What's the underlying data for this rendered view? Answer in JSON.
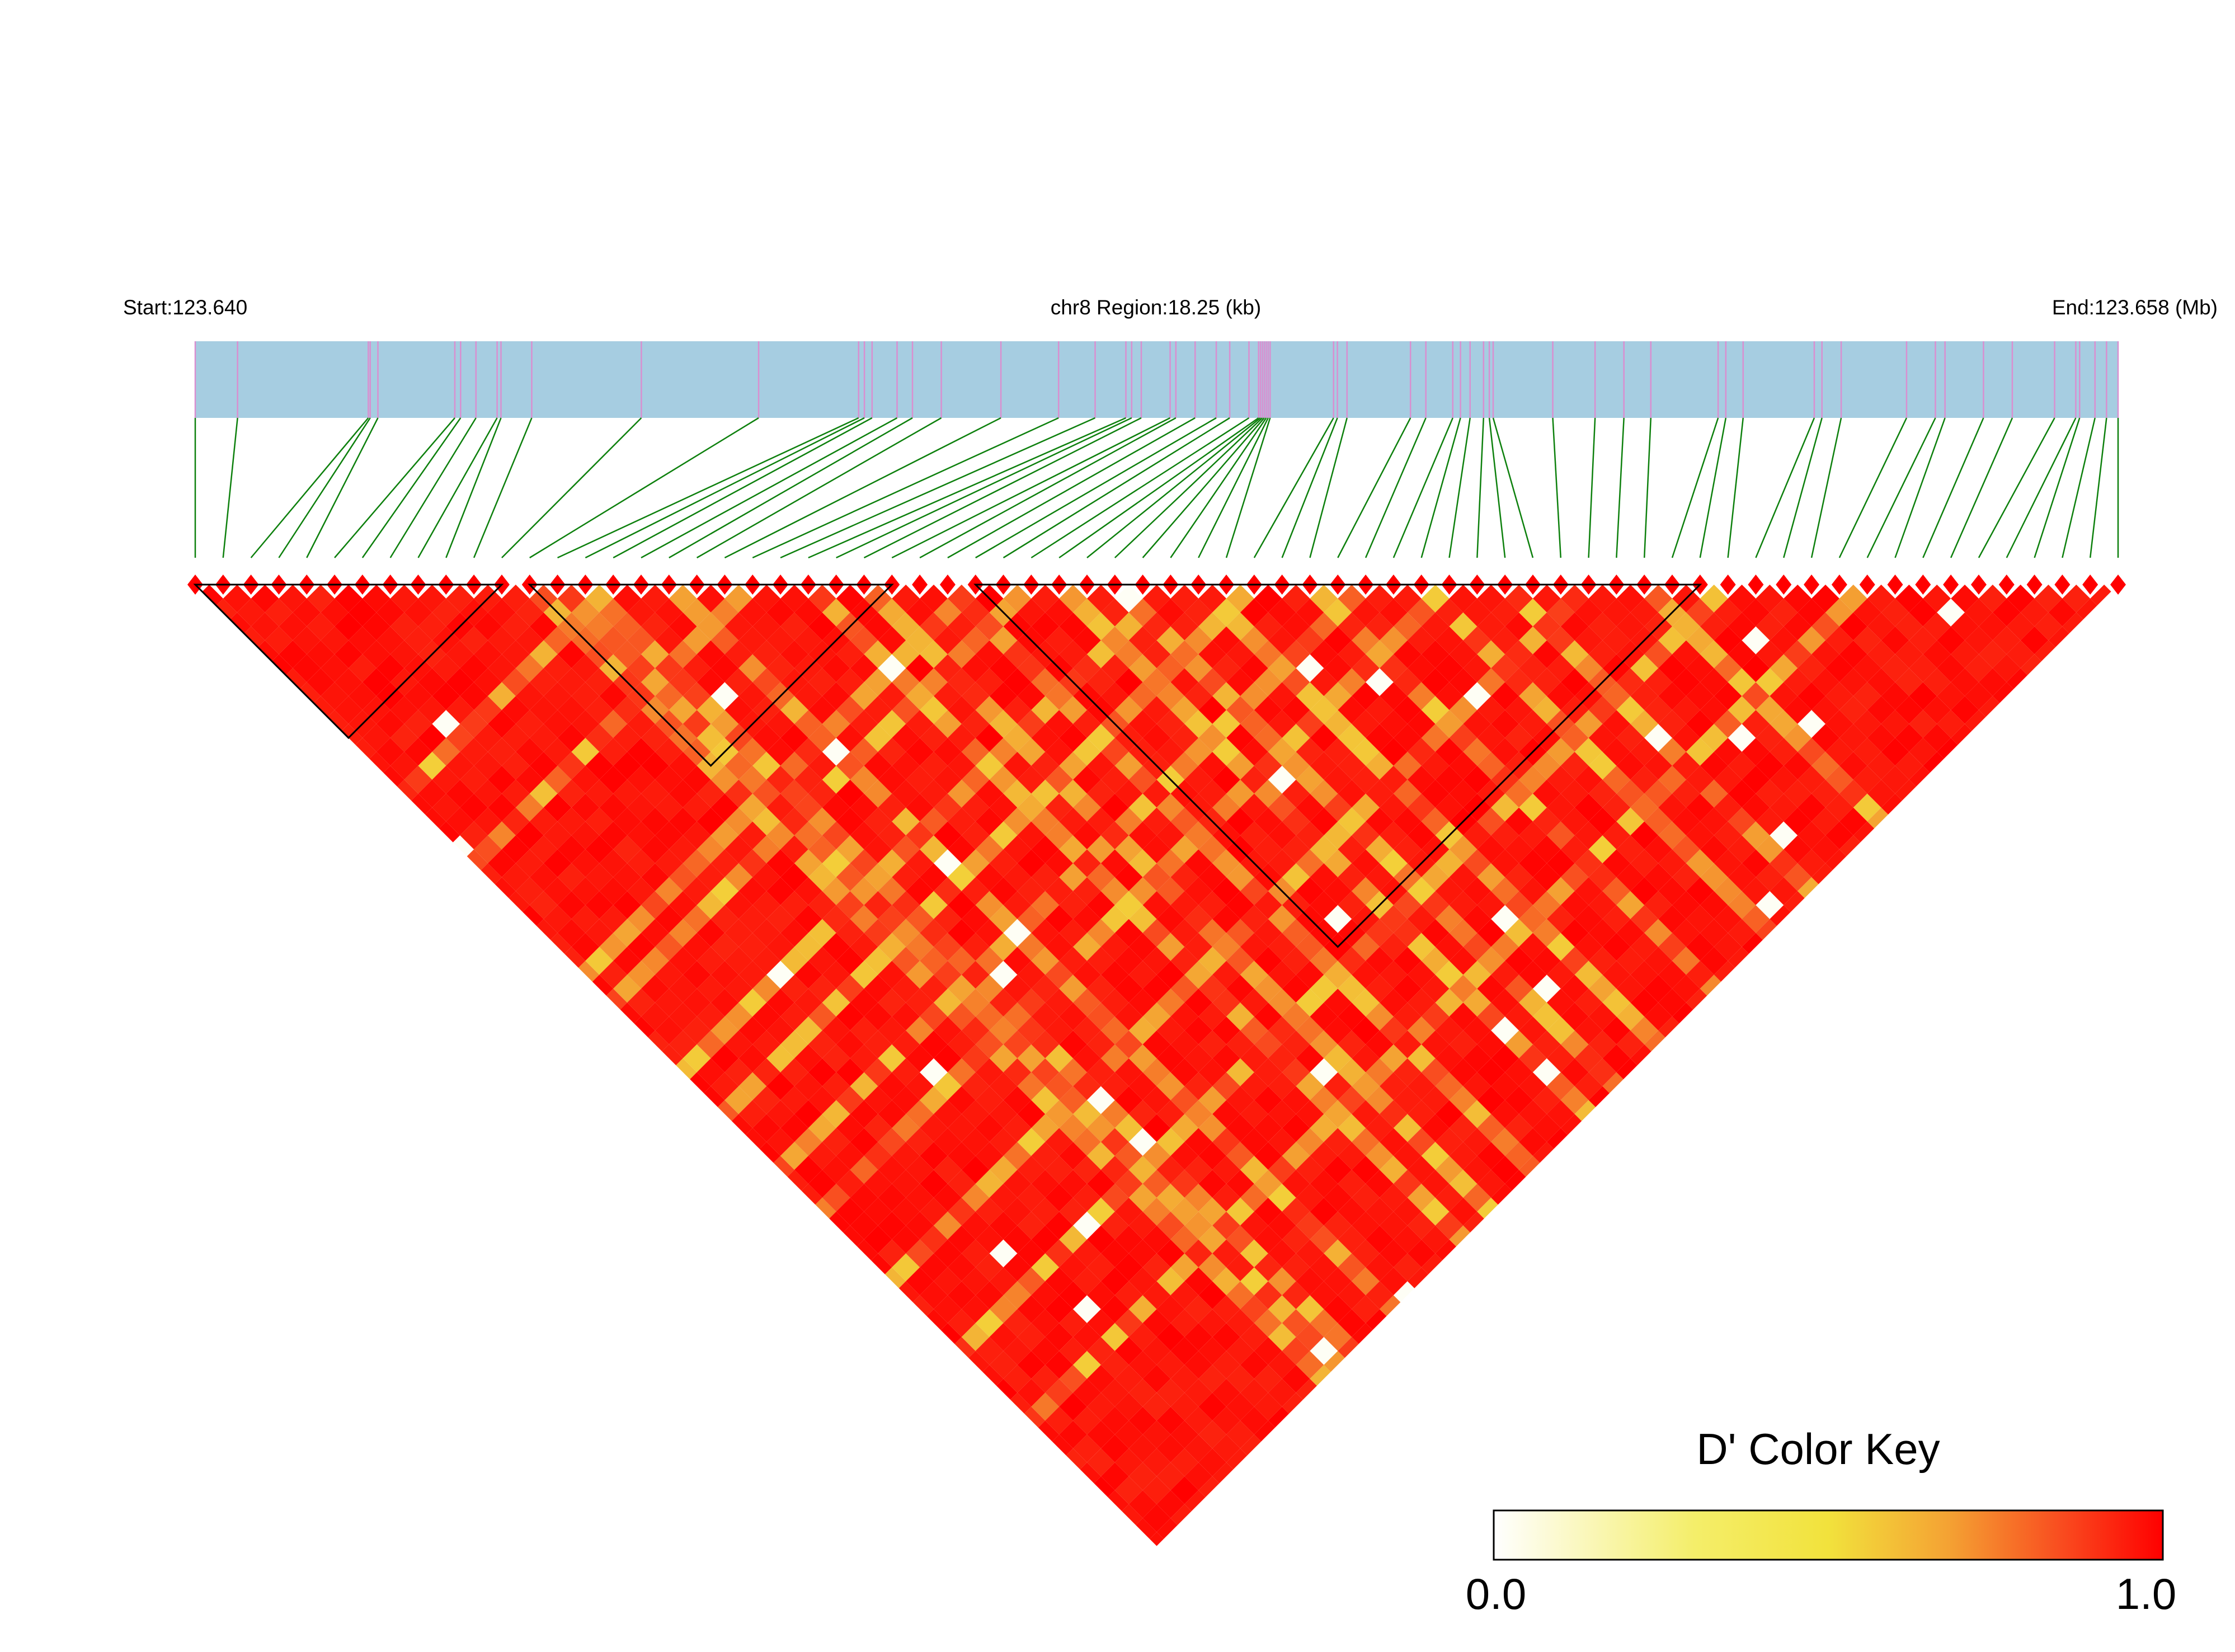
{
  "header": {
    "start_label": "Start:123.640",
    "region_label": "chr8 Region:18.25 (kb)",
    "end_label": "End:123.658 (Mb)"
  },
  "region": {
    "chromosome": "chr8",
    "start_mb": 123.64,
    "end_mb": 123.658,
    "length_kb": 18.25
  },
  "snps": {
    "count": 70,
    "positions_frac": [
      0.0,
      0.022,
      0.09,
      0.091,
      0.095,
      0.135,
      0.138,
      0.146,
      0.157,
      0.159,
      0.175,
      0.232,
      0.293,
      0.345,
      0.348,
      0.352,
      0.365,
      0.373,
      0.388,
      0.419,
      0.449,
      0.468,
      0.484,
      0.487,
      0.492,
      0.507,
      0.51,
      0.52,
      0.531,
      0.538,
      0.548,
      0.553,
      0.554,
      0.555,
      0.556,
      0.557,
      0.558,
      0.559,
      0.592,
      0.594,
      0.599,
      0.632,
      0.64,
      0.654,
      0.658,
      0.663,
      0.67,
      0.673,
      0.675,
      0.706,
      0.728,
      0.743,
      0.757,
      0.792,
      0.796,
      0.805,
      0.842,
      0.846,
      0.856,
      0.89,
      0.905,
      0.91,
      0.93,
      0.945,
      0.967,
      0.978,
      0.98,
      0.988,
      0.994,
      1.0
    ]
  },
  "colors": {
    "gene_track": "#a6cde1",
    "snp_tick": "#d98fd0",
    "connector": "#0d800d",
    "block_outline": "#000000"
  },
  "ld_blocks": [
    {
      "start": 0,
      "end": 11
    },
    {
      "start": 12,
      "end": 25
    },
    {
      "start": 28,
      "end": 54
    }
  ],
  "color_key": {
    "title": "D' Color Key",
    "min_label": "0.0",
    "max_label": "1.0",
    "min": 0.0,
    "max": 1.0,
    "stops": [
      "#ffffff",
      "#f2ea4a",
      "#f5a334",
      "#fb2f18",
      "#ff0000"
    ]
  }
}
